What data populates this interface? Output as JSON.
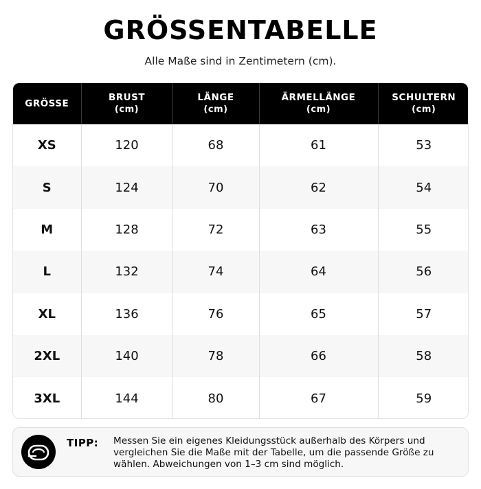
{
  "header": {
    "title": "GRÖSSENTABELLE",
    "subtitle": "Alle Maße sind in Zentimetern (cm)."
  },
  "table": {
    "columns": [
      {
        "label": "GRÖSSE",
        "unit": ""
      },
      {
        "label": "BRUST",
        "unit": "(cm)"
      },
      {
        "label": "LÄNGE",
        "unit": "(cm)"
      },
      {
        "label": "ÄRMELLÄNGE",
        "unit": "(cm)"
      },
      {
        "label": "SCHULTERN",
        "unit": "(cm)"
      }
    ],
    "rows": [
      {
        "size": "XS",
        "brust": "120",
        "laenge": "68",
        "aermel": "61",
        "schultern": "53"
      },
      {
        "size": "S",
        "brust": "124",
        "laenge": "70",
        "aermel": "62",
        "schultern": "54"
      },
      {
        "size": "M",
        "brust": "128",
        "laenge": "72",
        "aermel": "63",
        "schultern": "55"
      },
      {
        "size": "L",
        "brust": "132",
        "laenge": "74",
        "aermel": "64",
        "schultern": "56"
      },
      {
        "size": "XL",
        "brust": "136",
        "laenge": "76",
        "aermel": "65",
        "schultern": "57"
      },
      {
        "size": "2XL",
        "brust": "140",
        "laenge": "78",
        "aermel": "66",
        "schultern": "58"
      },
      {
        "size": "3XL",
        "brust": "144",
        "laenge": "80",
        "aermel": "67",
        "schultern": "59"
      }
    ]
  },
  "tip": {
    "icon": "measuring-tape-icon",
    "label": "TIPP:",
    "text": "Messen Sie ein eigenes Kleidungsstück außerhalb des Körpers und vergleichen Sie die Maße mit der Tabelle, um die passende Größe zu wählen. Abweichungen von 1–3 cm sind möglich."
  }
}
